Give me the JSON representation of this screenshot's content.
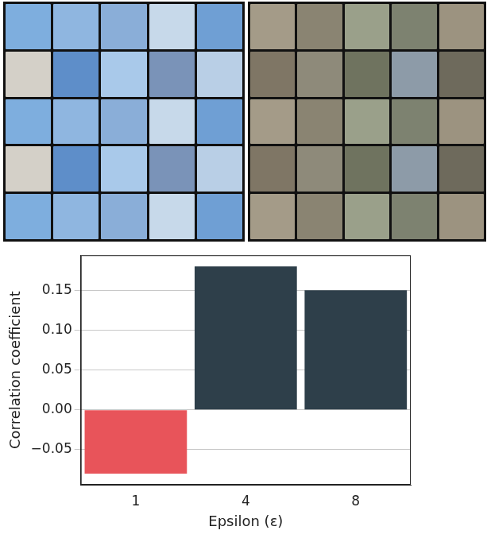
{
  "chart_data": {
    "type": "bar",
    "x_label": "Epsilon (ε)",
    "y_label": "Correlation coefficient",
    "categories": [
      "1",
      "4",
      "8"
    ],
    "values": [
      -0.08,
      0.18,
      0.15
    ],
    "colors": [
      "#e8545a",
      "#2e3f4a",
      "#2e3f4a"
    ],
    "ylim": [
      -0.094,
      0.194
    ],
    "yticks": [
      {
        "value": -0.05,
        "label": "−0.05"
      },
      {
        "value": 0,
        "label": "0.00"
      },
      {
        "value": 0.05,
        "label": "0.05"
      },
      {
        "value": 0.1,
        "label": "0.10"
      },
      {
        "value": 0.15,
        "label": "0.15"
      }
    ],
    "grid": true
  }
}
